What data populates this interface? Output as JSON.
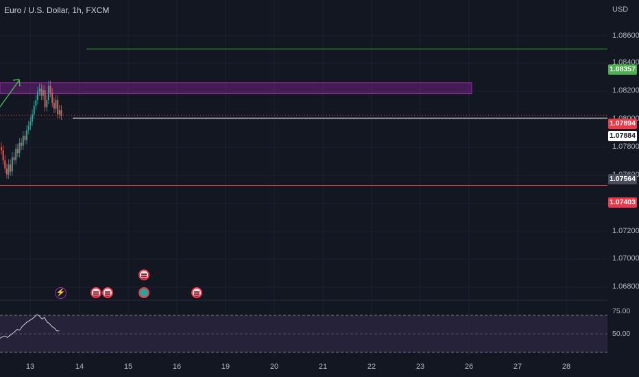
{
  "header": {
    "symbol_title": "Euro / U.S. Dollar, 1h, FXCM",
    "currency": "USD"
  },
  "price_axis": {
    "labels": [
      "1.08600",
      "1.08400",
      "1.08200",
      "1.08000",
      "1.07800",
      "1.07600",
      "1.07200",
      "1.07000",
      "1.06800"
    ]
  },
  "price_tags": {
    "target": {
      "text": "1.08357",
      "color": "#4caf50",
      "text_color": "#ffffff"
    },
    "last_price": {
      "text": "1.07894",
      "color": "#f23645",
      "text_color": "#ffffff"
    },
    "horizontal_line": {
      "text": "1.07884",
      "color": "#ffffff",
      "text_color": "#131722"
    },
    "prev_close": {
      "text": "1.07564",
      "color": "#4a4e5a",
      "text_color": "#ffffff"
    },
    "stop": {
      "text": "1.07403",
      "color": "#f23645",
      "text_color": "#ffffff"
    }
  },
  "time_axis": {
    "labels": [
      "13",
      "14",
      "15",
      "16",
      "19",
      "20",
      "21",
      "22",
      "23",
      "26",
      "27",
      "28"
    ]
  },
  "rsi": {
    "upper_label": "75.00",
    "mid_label": "50.00",
    "band_color": "#2a2540",
    "line_color": "#d1d4dc"
  },
  "drawings": {
    "zone_color": "#9c27b0",
    "up_arrow_color": "#4caf50",
    "target_line_color": "#4caf50",
    "stop_line_color": "#f23645"
  },
  "chart_data": {
    "type": "candlestick",
    "instrument": "Euro / U.S. Dollar",
    "timeframe": "1h",
    "close_series": [
      1.0765,
      1.0758,
      1.0752,
      1.0748,
      1.0755,
      1.075,
      1.076,
      1.0758,
      1.0766,
      1.0763,
      1.077,
      1.0768,
      1.0775,
      1.0772,
      1.0779,
      1.0782,
      1.0785,
      1.079,
      1.0796,
      1.08,
      1.0806,
      1.0808,
      1.0803,
      1.0807,
      1.0795,
      1.08,
      1.081,
      1.0805,
      1.0798,
      1.0794,
      1.08,
      1.079,
      1.0793,
      1.0789
    ],
    "y_range": [
      1.066,
      1.087
    ],
    "levels": {
      "target": 1.08357,
      "zone_top": 1.08121,
      "zone_bottom": 1.08046,
      "last": 1.07894,
      "line": 1.07884,
      "prev_close": 1.07564,
      "stop": 1.07403
    },
    "rsi_values": [
      44,
      46,
      47,
      45,
      48,
      50,
      53,
      56,
      55,
      60,
      63,
      66,
      68,
      70,
      73,
      76,
      74,
      70,
      72,
      66,
      64,
      60,
      58,
      54,
      54
    ]
  }
}
